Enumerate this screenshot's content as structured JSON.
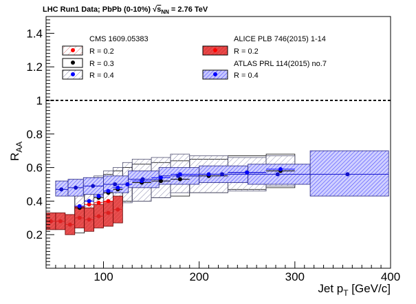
{
  "chart_data": {
    "type": "scatter",
    "title_parts": {
      "prefix": "LHC Run1 Data;  PbPb (0-10%) ",
      "sqrt_symbol": "√",
      "s_symbol": "s",
      "nn_subscript": "NN",
      "suffix": " = 2.76 TeV"
    },
    "xlabel": {
      "main": "Jet p",
      "sub": "T",
      "unit": " [GeV/c]"
    },
    "ylabel": {
      "main": "R",
      "sub": "AA"
    },
    "xlim": [
      40,
      400
    ],
    "ylim": [
      0,
      1.5
    ],
    "x_ticks": [
      100,
      200,
      300,
      400
    ],
    "y_ticks": [
      "0.2",
      "0.4",
      "0.6",
      "0.8",
      "1",
      "1.2",
      "1.4"
    ],
    "reference_line": 1,
    "legend": {
      "cms_header": "CMS 1609.05383",
      "cms_entries": [
        "R = 0.2",
        "R = 0.3",
        "R = 0.4"
      ],
      "alice_header": "ALICE PLB 746(2015) 1-14",
      "alice_entries": [
        "R = 0.2"
      ],
      "atlas_header": "ATLAS PRL 114(2015) no.7",
      "atlas_entries": [
        "R = 0.4"
      ]
    },
    "colors": {
      "cms_r02": "#ff0000",
      "cms_r03": "#000000",
      "cms_r04": "#0000ff",
      "alice": "#dd2020",
      "atlas": "#1010cc",
      "hatch_red": "#e08080",
      "hatch_blue": "#8080e0",
      "hatch_gray": "#9090a0"
    },
    "series": [
      {
        "name": "CMS R = 0.2",
        "color": "#ff0000",
        "style": "hatch-red",
        "points": [
          {
            "x": 75,
            "y": 0.36,
            "xlo": 70,
            "xhi": 80,
            "ylo": 0.25,
            "yhi": 0.47
          },
          {
            "x": 85,
            "y": 0.38,
            "xlo": 80,
            "xhi": 90,
            "ylo": 0.28,
            "yhi": 0.48
          },
          {
            "x": 95,
            "y": 0.39,
            "xlo": 90,
            "xhi": 100,
            "ylo": 0.29,
            "yhi": 0.49
          },
          {
            "x": 105,
            "y": 0.4,
            "xlo": 100,
            "xhi": 110,
            "ylo": 0.3,
            "yhi": 0.5
          }
        ]
      },
      {
        "name": "CMS R = 0.3",
        "color": "#000000",
        "style": "box-black",
        "points": [
          {
            "x": 75,
            "y": 0.36,
            "xlo": 70,
            "xhi": 80,
            "ylo": 0.21,
            "yhi": 0.52
          },
          {
            "x": 85,
            "y": 0.4,
            "xlo": 80,
            "xhi": 90,
            "ylo": 0.29,
            "yhi": 0.51
          },
          {
            "x": 95,
            "y": 0.42,
            "xlo": 90,
            "xhi": 100,
            "ylo": 0.31,
            "yhi": 0.54
          },
          {
            "x": 105,
            "y": 0.45,
            "xlo": 100,
            "xhi": 110,
            "ylo": 0.35,
            "yhi": 0.56
          },
          {
            "x": 115,
            "y": 0.47,
            "xlo": 110,
            "xhi": 120,
            "ylo": 0.37,
            "yhi": 0.58
          },
          {
            "x": 125,
            "y": 0.5,
            "xlo": 120,
            "xhi": 130,
            "ylo": 0.4,
            "yhi": 0.6
          },
          {
            "x": 140,
            "y": 0.51,
            "xlo": 130,
            "xhi": 150,
            "ylo": 0.4,
            "yhi": 0.62
          },
          {
            "x": 160,
            "y": 0.52,
            "xlo": 150,
            "xhi": 170,
            "ylo": 0.42,
            "yhi": 0.63
          },
          {
            "x": 180,
            "y": 0.53,
            "xlo": 170,
            "xhi": 190,
            "ylo": 0.43,
            "yhi": 0.64
          },
          {
            "x": 210,
            "y": 0.55,
            "xlo": 190,
            "xhi": 230,
            "ylo": 0.45,
            "yhi": 0.65
          },
          {
            "x": 250,
            "y": 0.57,
            "xlo": 230,
            "xhi": 270,
            "ylo": 0.47,
            "yhi": 0.67
          },
          {
            "x": 285,
            "y": 0.58,
            "xlo": 270,
            "xhi": 300,
            "ylo": 0.48,
            "yhi": 0.68
          }
        ]
      },
      {
        "name": "CMS R = 0.4",
        "color": "#0000ff",
        "style": "hatch-gray",
        "points": [
          {
            "x": 75,
            "y": 0.37,
            "xlo": 70,
            "xhi": 80,
            "ylo": 0.27,
            "yhi": 0.49
          },
          {
            "x": 85,
            "y": 0.4,
            "xlo": 80,
            "xhi": 90,
            "ylo": 0.3,
            "yhi": 0.51
          },
          {
            "x": 95,
            "y": 0.43,
            "xlo": 90,
            "xhi": 100,
            "ylo": 0.33,
            "yhi": 0.55
          },
          {
            "x": 105,
            "y": 0.46,
            "xlo": 100,
            "xhi": 110,
            "ylo": 0.36,
            "yhi": 0.58
          },
          {
            "x": 115,
            "y": 0.48,
            "xlo": 110,
            "xhi": 120,
            "ylo": 0.37,
            "yhi": 0.6
          },
          {
            "x": 125,
            "y": 0.5,
            "xlo": 120,
            "xhi": 130,
            "ylo": 0.39,
            "yhi": 0.63
          },
          {
            "x": 140,
            "y": 0.52,
            "xlo": 130,
            "xhi": 150,
            "ylo": 0.4,
            "yhi": 0.65
          },
          {
            "x": 160,
            "y": 0.54,
            "xlo": 150,
            "xhi": 170,
            "ylo": 0.42,
            "yhi": 0.66
          },
          {
            "x": 180,
            "y": 0.56,
            "xlo": 170,
            "xhi": 190,
            "ylo": 0.45,
            "yhi": 0.68
          },
          {
            "x": 210,
            "y": 0.56,
            "xlo": 190,
            "xhi": 230,
            "ylo": 0.45,
            "yhi": 0.67
          },
          {
            "x": 250,
            "y": 0.57,
            "xlo": 230,
            "xhi": 270,
            "ylo": 0.46,
            "yhi": 0.66
          },
          {
            "x": 285,
            "y": 0.59,
            "xlo": 270,
            "xhi": 300,
            "ylo": 0.49,
            "yhi": 0.67
          }
        ]
      },
      {
        "name": "ALICE R = 0.2",
        "color": "#dd2020",
        "style": "alice-red",
        "points": [
          {
            "x": 45,
            "y": 0.28,
            "xlo": 40,
            "xhi": 50,
            "ylo": 0.23,
            "yhi": 0.33
          },
          {
            "x": 55,
            "y": 0.28,
            "xlo": 50,
            "xhi": 60,
            "ylo": 0.23,
            "yhi": 0.33
          },
          {
            "x": 65,
            "y": 0.26,
            "xlo": 60,
            "xhi": 70,
            "ylo": 0.2,
            "yhi": 0.32
          },
          {
            "x": 75,
            "y": 0.3,
            "xlo": 70,
            "xhi": 80,
            "ylo": 0.24,
            "yhi": 0.37
          },
          {
            "x": 85,
            "y": 0.29,
            "xlo": 80,
            "xhi": 90,
            "ylo": 0.22,
            "yhi": 0.36
          },
          {
            "x": 95,
            "y": 0.31,
            "xlo": 90,
            "xhi": 100,
            "ylo": 0.24,
            "yhi": 0.38
          },
          {
            "x": 105,
            "y": 0.33,
            "xlo": 100,
            "xhi": 110,
            "ylo": 0.25,
            "yhi": 0.4
          },
          {
            "x": 115,
            "y": 0.35,
            "xlo": 110,
            "xhi": 120,
            "ylo": 0.27,
            "yhi": 0.43
          }
        ]
      },
      {
        "name": "ATLAS R = 0.4",
        "color": "#1010cc",
        "style": "atlas-blue",
        "points": [
          {
            "x": 56,
            "y": 0.47,
            "xlo": 50,
            "xhi": 63,
            "ylo": 0.43,
            "yhi": 0.52
          },
          {
            "x": 71,
            "y": 0.48,
            "xlo": 63,
            "xhi": 79,
            "ylo": 0.43,
            "yhi": 0.53
          },
          {
            "x": 89,
            "y": 0.49,
            "xlo": 79,
            "xhi": 100,
            "ylo": 0.44,
            "yhi": 0.54
          },
          {
            "x": 112,
            "y": 0.5,
            "xlo": 100,
            "xhi": 126,
            "ylo": 0.45,
            "yhi": 0.55
          },
          {
            "x": 141,
            "y": 0.53,
            "xlo": 126,
            "xhi": 158,
            "ylo": 0.48,
            "yhi": 0.58
          },
          {
            "x": 178,
            "y": 0.55,
            "xlo": 158,
            "xhi": 200,
            "ylo": 0.5,
            "yhi": 0.6
          },
          {
            "x": 224,
            "y": 0.56,
            "xlo": 200,
            "xhi": 251,
            "ylo": 0.51,
            "yhi": 0.61
          },
          {
            "x": 282,
            "y": 0.56,
            "xlo": 251,
            "xhi": 316,
            "ylo": 0.5,
            "yhi": 0.62
          },
          {
            "x": 355,
            "y": 0.56,
            "xlo": 316,
            "xhi": 398,
            "ylo": 0.43,
            "yhi": 0.7
          }
        ]
      }
    ]
  }
}
